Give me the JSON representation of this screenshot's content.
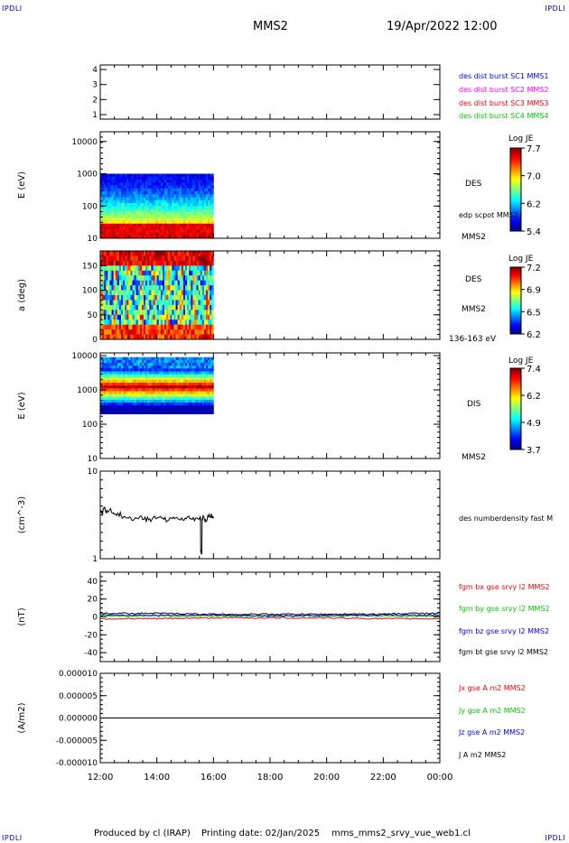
{
  "header": {
    "corner_tag": "IPDLI",
    "spacecraft": "MMS2",
    "date_time": "19/Apr/2022 12:00"
  },
  "footer": {
    "produced_by": "Produced by cl (IRAP)",
    "printing_date": "Printing date: 02/Jan/2025",
    "filename": "mms_mms2_srvy_vue_web1.cl"
  },
  "colors": {
    "blue": "#0000ff",
    "magenta": "#ff00ff",
    "red": "#ff0000",
    "green": "#00cc00",
    "black": "#000000"
  },
  "chart_data": [
    {
      "type": "table",
      "id": "burst-availability",
      "yticks": [
        "1",
        "2",
        "3",
        "4"
      ],
      "ylim": [
        0.7,
        4.3
      ],
      "legend": [
        {
          "label": "des dist burst SC1 MMS1",
          "color": "#0000ff"
        },
        {
          "label": "des dist burst SC2 MMS2",
          "color": "#ff00ff"
        },
        {
          "label": "des dist burst SC3 MMS3",
          "color": "#ff0000"
        },
        {
          "label": "des dist burst SC4 MMS4",
          "color": "#00cc00"
        }
      ]
    },
    {
      "type": "heatmap",
      "id": "des-energy",
      "ylabel": "E (eV)",
      "yscale": "log",
      "ylim": [
        10,
        20000
      ],
      "yticks": [
        "10",
        "100",
        "1000",
        "10000"
      ],
      "x_range": [
        "12:00",
        "16:00"
      ],
      "y_range_ev": [
        10,
        1000
      ],
      "side_label": "DES",
      "side_note": "edp scpot MMS2",
      "spacecraft_label": "MMS2",
      "colorbar": {
        "title": "Log JE",
        "ticks": [
          "7.7",
          "7.0",
          "6.2",
          "5.4"
        ]
      }
    },
    {
      "type": "heatmap",
      "id": "des-pitch-angle",
      "ylabel": "a (deg)",
      "ylim": [
        0,
        180
      ],
      "yticks": [
        "0",
        "50",
        "100",
        "150"
      ],
      "x_range": [
        "12:00",
        "16:00"
      ],
      "side_label": "DES",
      "spacecraft_label": "MMS2",
      "energy_band": "136-163 eV",
      "colorbar": {
        "title": "Log JE",
        "ticks": [
          "7.2",
          "6.9",
          "6.5",
          "6.2"
        ]
      }
    },
    {
      "type": "heatmap",
      "id": "dis-energy",
      "ylabel": "E (eV)",
      "yscale": "log",
      "ylim": [
        10,
        12000
      ],
      "yticks": [
        "10",
        "100",
        "1000",
        "10000"
      ],
      "x_range": [
        "12:00",
        "16:00"
      ],
      "y_range_ev": [
        200,
        9000
      ],
      "side_label": "DIS",
      "spacecraft_label": "MMS2",
      "colorbar": {
        "title": "Log JE",
        "ticks": [
          "7.4",
          "6.2",
          "4.9",
          "3.7"
        ]
      }
    },
    {
      "type": "line",
      "id": "density",
      "ylabel": "(cm^-3)",
      "yscale": "log",
      "ylim": [
        1,
        10
      ],
      "yticks": [
        "1",
        "10"
      ],
      "series": [
        {
          "name": "des numberdensity fast M",
          "color": "#000000",
          "x_hours": [
            0.0,
            0.1,
            0.2,
            0.3,
            0.5,
            0.75,
            1.0,
            1.25,
            1.5,
            1.75,
            2.0,
            2.25,
            2.5,
            2.75,
            3.0,
            3.25,
            3.5,
            3.55,
            3.6,
            3.7,
            3.8,
            3.95,
            4.0
          ],
          "values": [
            3.3,
            3.7,
            3.4,
            3.5,
            3.2,
            3.0,
            2.9,
            2.95,
            2.8,
            2.85,
            2.9,
            2.8,
            2.9,
            2.85,
            2.9,
            2.8,
            2.9,
            1.2,
            2.9,
            2.7,
            3.1,
            2.9,
            3.0
          ]
        }
      ]
    },
    {
      "type": "line",
      "id": "magnetic-field",
      "ylabel": "(nT)",
      "ylim": [
        -50,
        50
      ],
      "yticks": [
        "-40",
        "-20",
        "0",
        "20",
        "40"
      ],
      "series": [
        {
          "name": "fgm bx gse srvy l2 MMS2",
          "color": "#ff0000",
          "x_hours": [
            0,
            2,
            4,
            6,
            8,
            10,
            11,
            12
          ],
          "values": [
            -2,
            -2,
            -1,
            -1,
            -1,
            -2,
            -2,
            -2
          ]
        },
        {
          "name": "fgm by gse srvy l2 MMS2",
          "color": "#00cc00",
          "x_hours": [
            0,
            2,
            4,
            6,
            8,
            10,
            11,
            12
          ],
          "values": [
            1,
            1,
            1,
            1,
            1,
            1,
            1,
            1
          ]
        },
        {
          "name": "fgm bz gse srvy l2 MMS2",
          "color": "#0000ff",
          "x_hours": [
            0,
            2,
            4,
            6,
            8,
            10,
            11,
            12
          ],
          "values": [
            2,
            2,
            2,
            1,
            2,
            2,
            2,
            2
          ]
        },
        {
          "name": "fgm bt gse srvy l2 MMS2",
          "color": "#000000",
          "x_hours": [
            0,
            2,
            4,
            6,
            8,
            10,
            11,
            12
          ],
          "values": [
            4,
            4,
            3,
            3,
            3,
            3,
            4,
            4
          ]
        }
      ]
    },
    {
      "type": "line",
      "id": "current-density",
      "ylabel": "(A/m2)",
      "ylim": [
        -1e-05,
        1e-05
      ],
      "yticks": [
        "-0.000010",
        "-0.000005",
        "0.000000",
        "0.000005",
        "0.000010"
      ],
      "xticks": [
        "12:00",
        "14:00",
        "16:00",
        "18:00",
        "20:00",
        "22:00",
        "00:00"
      ],
      "series": [
        {
          "name": "Jx gse A m2 MMS2",
          "color": "#ff0000",
          "x_hours": [
            0,
            12
          ],
          "values": [
            0,
            0
          ]
        },
        {
          "name": "Jy gse A m2 MMS2",
          "color": "#00cc00",
          "x_hours": [
            0,
            12
          ],
          "values": [
            0,
            0
          ]
        },
        {
          "name": "Jz gse A m2 MMS2",
          "color": "#0000ff",
          "x_hours": [
            0,
            12
          ],
          "values": [
            0,
            0
          ]
        },
        {
          "name": "J A m2 MMS2",
          "color": "#000000",
          "x_hours": [
            0,
            12
          ],
          "values": [
            0,
            0
          ]
        }
      ]
    }
  ]
}
